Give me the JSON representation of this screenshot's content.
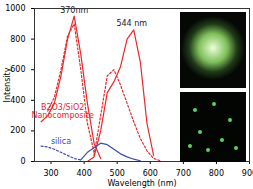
{
  "chart_data": {
    "type": "line",
    "x_label": "Wavelength (nm)",
    "y_label": "Intensity",
    "xlim": [
      250,
      900
    ],
    "xticks": [
      300,
      400,
      500,
      600,
      700,
      800,
      900
    ],
    "ylim": [
      0,
      1000
    ],
    "yticks": [
      0,
      200,
      400,
      600,
      800,
      1000
    ],
    "grid": false,
    "x": [
      270,
      290,
      310,
      330,
      350,
      370,
      390,
      410,
      430,
      450,
      470,
      490,
      510,
      530,
      550,
      570,
      590,
      610,
      630,
      650
    ],
    "series": [
      {
        "color": "#e8282b",
        "line_style": "solid",
        "values": [
          260,
          300,
          380,
          560,
          800,
          950,
          700,
          380,
          120,
          20,
          null,
          null,
          null,
          null,
          null,
          null,
          null,
          null,
          null,
          null
        ]
      },
      {
        "color": "#e8282b",
        "line_style": "solid",
        "values": [
          null,
          null,
          null,
          null,
          null,
          null,
          null,
          0,
          30,
          200,
          450,
          520,
          620,
          800,
          860,
          650,
          250,
          40,
          null,
          null
        ]
      },
      {
        "color": "#e8282b",
        "line_style": "dotted",
        "values": [
          null,
          330,
          420,
          600,
          820,
          900,
          600,
          250,
          60,
          null,
          null,
          null,
          null,
          null,
          null,
          null,
          null,
          null,
          null,
          null
        ]
      },
      {
        "color": "#e8282b",
        "line_style": "dotted",
        "values": [
          null,
          null,
          null,
          null,
          null,
          null,
          null,
          null,
          40,
          300,
          560,
          600,
          500,
          380,
          260,
          150,
          70,
          20,
          5,
          null
        ]
      },
      {
        "color": "#3a4fb0",
        "line_style": "dotted",
        "values": [
          100,
          95,
          80,
          60,
          40,
          20,
          10,
          null,
          null,
          null,
          null,
          null,
          null,
          null,
          null,
          null,
          null,
          null,
          null,
          null
        ]
      },
      {
        "color": "#3a4fb0",
        "line_style": "solid",
        "values": [
          null,
          null,
          null,
          null,
          null,
          null,
          10,
          60,
          90,
          120,
          110,
          80,
          50,
          30,
          15,
          5,
          null,
          null,
          null,
          null
        ]
      }
    ],
    "annotations": [
      {
        "text": "370nm",
        "x": 370,
        "y": 985,
        "color": "#222222"
      },
      {
        "text": "544 nm",
        "x": 544,
        "y": 900,
        "color": "#222222"
      },
      {
        "text": "B2O3/SiO2 Nanocomposite",
        "x": 335,
        "y": 330,
        "color": "#e8282b"
      },
      {
        "text": "silica",
        "x": 330,
        "y": 130,
        "color": "#3a4fb0"
      }
    ]
  }
}
